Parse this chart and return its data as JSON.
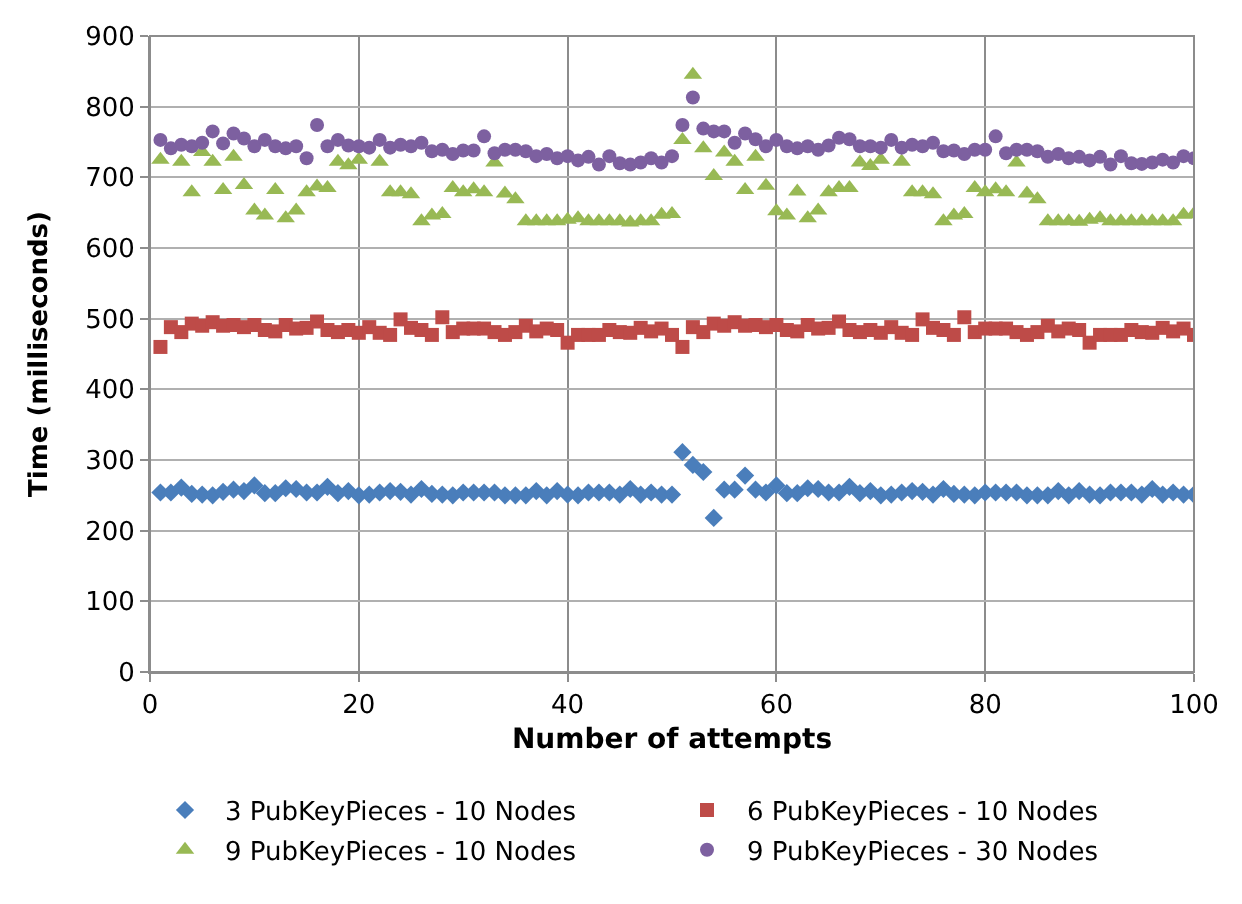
{
  "chart_data": {
    "type": "scatter",
    "xlabel": "Number of attempts",
    "ylabel": "Time (milliseconds)",
    "x": [
      1,
      2,
      3,
      4,
      5,
      6,
      7,
      8,
      9,
      10,
      11,
      12,
      13,
      14,
      15,
      16,
      17,
      18,
      19,
      20,
      21,
      22,
      23,
      24,
      25,
      26,
      27,
      28,
      29,
      30,
      31,
      32,
      33,
      34,
      35,
      36,
      37,
      38,
      39,
      40,
      41,
      42,
      43,
      44,
      45,
      46,
      47,
      48,
      49,
      50,
      51,
      52,
      53,
      54,
      55,
      56,
      57,
      58,
      59,
      60,
      61,
      62,
      63,
      64,
      65,
      66,
      67,
      68,
      69,
      70,
      71,
      72,
      73,
      74,
      75,
      76,
      77,
      78,
      79,
      80,
      81,
      82,
      83,
      84,
      85,
      86,
      87,
      88,
      89,
      90,
      91,
      92,
      93,
      94,
      95,
      96,
      97,
      98,
      99,
      100
    ],
    "xlim": [
      0,
      100
    ],
    "xticks": [
      0,
      20,
      40,
      60,
      80,
      100
    ],
    "ylim": [
      0,
      900
    ],
    "yticks": [
      0,
      100,
      200,
      300,
      400,
      500,
      600,
      700,
      800,
      900
    ],
    "grid": true,
    "legend": "bottom",
    "series": [
      {
        "name": "3 PubKeyPieces - 10 Nodes",
        "color": "#4a7ebb",
        "marker": "diamond",
        "values": [
          254,
          254,
          261,
          252,
          251,
          250,
          255,
          258,
          256,
          264,
          253,
          253,
          260,
          259,
          254,
          254,
          262,
          253,
          256,
          250,
          251,
          254,
          256,
          255,
          251,
          259,
          252,
          251,
          250,
          254,
          254,
          254,
          254,
          250,
          250,
          250,
          256,
          250,
          256,
          251,
          250,
          254,
          254,
          254,
          251,
          259,
          251,
          254,
          251,
          251,
          311,
          293,
          283,
          218,
          258,
          258,
          278,
          258,
          254,
          264,
          253,
          253,
          260,
          259,
          254,
          254,
          262,
          253,
          256,
          250,
          251,
          254,
          256,
          255,
          251,
          259,
          252,
          251,
          250,
          254,
          254,
          254,
          254,
          250,
          250,
          250,
          256,
          250,
          256,
          251,
          250,
          254,
          254,
          254,
          251,
          259,
          251,
          254,
          251,
          251
        ]
      },
      {
        "name": "6 PubKeyPieces - 10 Nodes",
        "color": "#be4b48",
        "marker": "square",
        "values": [
          460,
          488,
          481,
          493,
          490,
          495,
          490,
          491,
          488,
          491,
          484,
          482,
          491,
          486,
          487,
          496,
          484,
          481,
          484,
          480,
          488,
          480,
          477,
          499,
          487,
          484,
          477,
          502,
          481,
          486,
          486,
          486,
          481,
          477,
          481,
          490,
          482,
          486,
          484,
          466,
          477,
          477,
          477,
          484,
          481,
          480,
          487,
          482,
          486,
          477,
          460,
          488,
          481,
          493,
          490,
          495,
          490,
          491,
          488,
          491,
          484,
          482,
          491,
          486,
          487,
          496,
          484,
          481,
          484,
          480,
          488,
          480,
          477,
          499,
          487,
          484,
          477,
          502,
          481,
          486,
          486,
          486,
          481,
          477,
          481,
          490,
          482,
          486,
          484,
          466,
          477,
          477,
          477,
          484,
          481,
          480,
          487,
          482,
          486,
          477
        ]
      },
      {
        "name": "9 PubKeyPieces - 10 Nodes",
        "color": "#98b954",
        "marker": "triangle",
        "values": [
          725,
          null,
          722,
          679,
          736,
          722,
          682,
          729,
          689,
          653,
          646,
          682,
          642,
          653,
          679,
          687,
          685,
          722,
          717,
          725,
          null,
          722,
          679,
          679,
          676,
          638,
          646,
          648,
          685,
          679,
          683,
          679,
          721,
          677,
          669,
          638,
          638,
          638,
          638,
          640,
          642,
          638,
          638,
          638,
          638,
          636,
          638,
          638,
          647,
          648,
          753,
          845,
          741,
          702,
          735,
          722,
          682,
          729,
          688,
          652,
          646,
          680,
          642,
          653,
          679,
          685,
          685,
          721,
          716,
          725,
          null,
          722,
          679,
          679,
          676,
          638,
          646,
          648,
          685,
          679,
          683,
          679,
          721,
          677,
          669,
          638,
          638,
          638,
          637,
          640,
          642,
          638,
          638,
          638,
          638,
          638,
          638,
          638,
          647,
          648
        ]
      },
      {
        "name": "9 PubKeyPieces - 30 Nodes",
        "color": "#7d60a0",
        "marker": "circle",
        "values": [
          753,
          741,
          746,
          744,
          749,
          765,
          748,
          762,
          755,
          744,
          753,
          744,
          741,
          744,
          727,
          774,
          744,
          753,
          745,
          744,
          742,
          753,
          742,
          746,
          744,
          749,
          737,
          739,
          733,
          738,
          738,
          758,
          734,
          739,
          739,
          737,
          730,
          733,
          727,
          730,
          724,
          729,
          718,
          730,
          720,
          718,
          721,
          727,
          721,
          730,
          774,
          813,
          769,
          765,
          765,
          749,
          762,
          754,
          744,
          753,
          744,
          741,
          744,
          739,
          745,
          756,
          754,
          744,
          744,
          742,
          753,
          742,
          746,
          744,
          749,
          737,
          738,
          733,
          739,
          739,
          758,
          734,
          739,
          739,
          737,
          729,
          733,
          727,
          729,
          724,
          729,
          718,
          730,
          720,
          719,
          721,
          725,
          721,
          730,
          727
        ]
      }
    ]
  }
}
